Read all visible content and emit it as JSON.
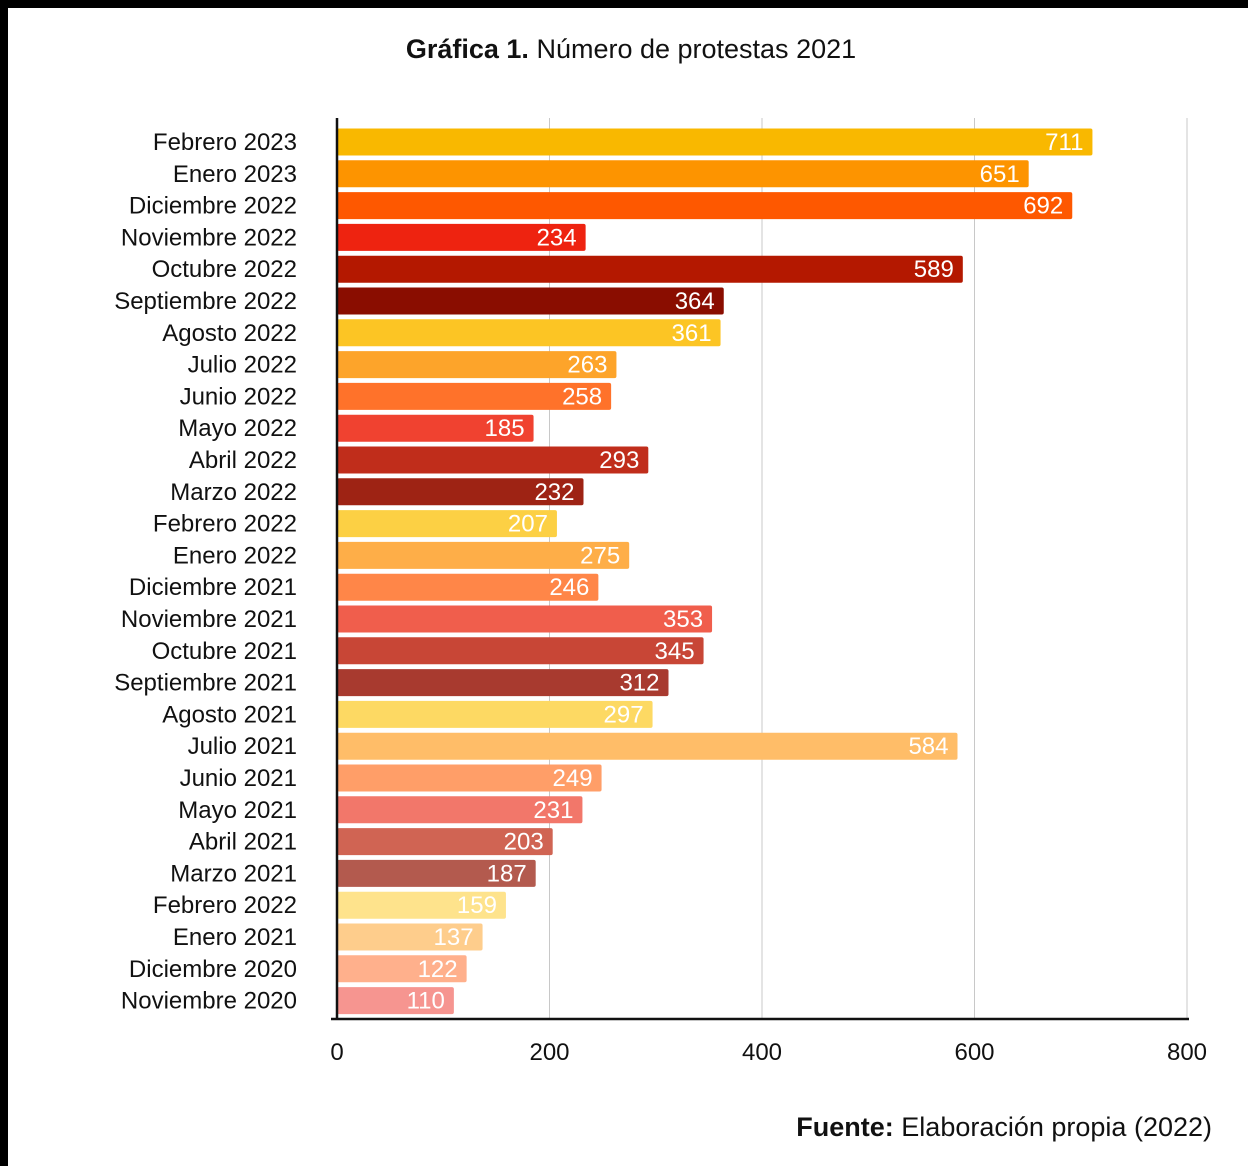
{
  "chart_data": {
    "type": "bar",
    "orientation": "horizontal",
    "title_bold": "Gráfica 1.",
    "title_rest": " Número de protestas 2021",
    "xlabel": "",
    "ylabel": "",
    "xlim": [
      0,
      800
    ],
    "xticks": [
      "0",
      "200",
      "400",
      "600",
      "800"
    ],
    "grid": true,
    "legend": "none",
    "categories": [
      "Febrero 2023",
      "Enero 2023",
      "Diciembre 2022",
      "Noviembre 2022",
      "Octubre 2022",
      "Septiembre 2022",
      "Agosto 2022",
      "Julio 2022",
      "Junio 2022",
      "Mayo 2022",
      "Abril 2022",
      "Marzo 2022",
      "Febrero 2022",
      "Enero 2022",
      "Diciembre 2021",
      "Noviembre 2021",
      "Octubre 2021",
      "Septiembre 2021",
      "Agosto 2021",
      "Julio 2021",
      "Junio 2021",
      "Mayo 2021",
      "Abril 2021",
      "Marzo 2021",
      "Febrero 2022",
      "Enero 2021",
      "Diciembre 2020",
      "Noviembre 2020"
    ],
    "values": [
      711,
      651,
      692,
      234,
      589,
      364,
      361,
      263,
      258,
      185,
      293,
      232,
      207,
      275,
      246,
      353,
      345,
      312,
      297,
      584,
      249,
      231,
      203,
      187,
      159,
      137,
      122,
      110
    ],
    "colors": [
      "#F9B800",
      "#FD9400",
      "#FE5800",
      "#EE2310",
      "#B41800",
      "#8A0D00",
      "#FCC524",
      "#FDA42A",
      "#FF722A",
      "#F04230",
      "#C02D1B",
      "#9E2314",
      "#FCD044",
      "#FEAE48",
      "#FF8648",
      "#F05E4C",
      "#C84636",
      "#A83A2F",
      "#FDD963",
      "#FFBD68",
      "#FF9E68",
      "#F2776A",
      "#D06453",
      "#B35A4E",
      "#FEE38C",
      "#FECD8C",
      "#FFB08C",
      "#F69590"
    ]
  },
  "source": {
    "label": "Fuente:",
    "text": " Elaboración propia (2022)"
  }
}
